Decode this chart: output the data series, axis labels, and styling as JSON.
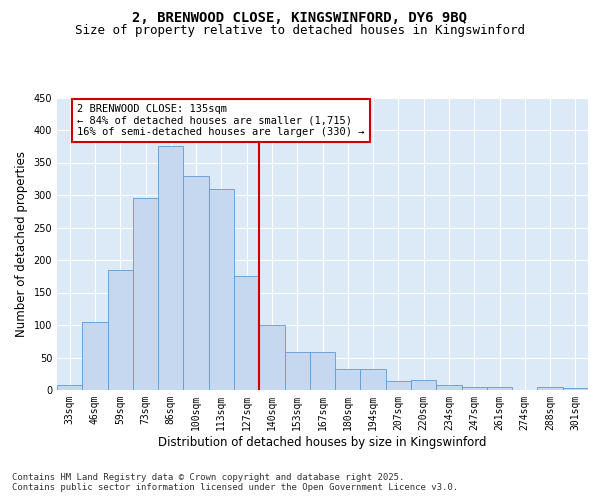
{
  "title": "2, BRENWOOD CLOSE, KINGSWINFORD, DY6 9BQ",
  "subtitle": "Size of property relative to detached houses in Kingswinford",
  "xlabel": "Distribution of detached houses by size in Kingswinford",
  "ylabel": "Number of detached properties",
  "categories": [
    "33sqm",
    "46sqm",
    "59sqm",
    "73sqm",
    "86sqm",
    "100sqm",
    "113sqm",
    "127sqm",
    "140sqm",
    "153sqm",
    "167sqm",
    "180sqm",
    "194sqm",
    "207sqm",
    "220sqm",
    "234sqm",
    "247sqm",
    "261sqm",
    "274sqm",
    "288sqm",
    "301sqm"
  ],
  "values": [
    8,
    105,
    185,
    295,
    375,
    330,
    310,
    175,
    100,
    58,
    58,
    33,
    33,
    14,
    15,
    8,
    5,
    5,
    0,
    4,
    3
  ],
  "bar_color": "#c5d8f0",
  "bar_edge_color": "#5b9bd5",
  "vline_x": 7.5,
  "vline_color": "#cc0000",
  "annotation_text": "2 BRENWOOD CLOSE: 135sqm\n← 84% of detached houses are smaller (1,715)\n16% of semi-detached houses are larger (330) →",
  "annotation_box_color": "#ffffff",
  "annotation_box_edge": "#cc0000",
  "ylim": [
    0,
    450
  ],
  "yticks": [
    0,
    50,
    100,
    150,
    200,
    250,
    300,
    350,
    400,
    450
  ],
  "footer_line1": "Contains HM Land Registry data © Crown copyright and database right 2025.",
  "footer_line2": "Contains public sector information licensed under the Open Government Licence v3.0.",
  "bg_color": "#dce9f7",
  "fig_bg": "#ffffff",
  "title_fontsize": 10,
  "subtitle_fontsize": 9,
  "axis_label_fontsize": 8.5,
  "tick_fontsize": 7,
  "footer_fontsize": 6.5,
  "annotation_fontsize": 7.5
}
